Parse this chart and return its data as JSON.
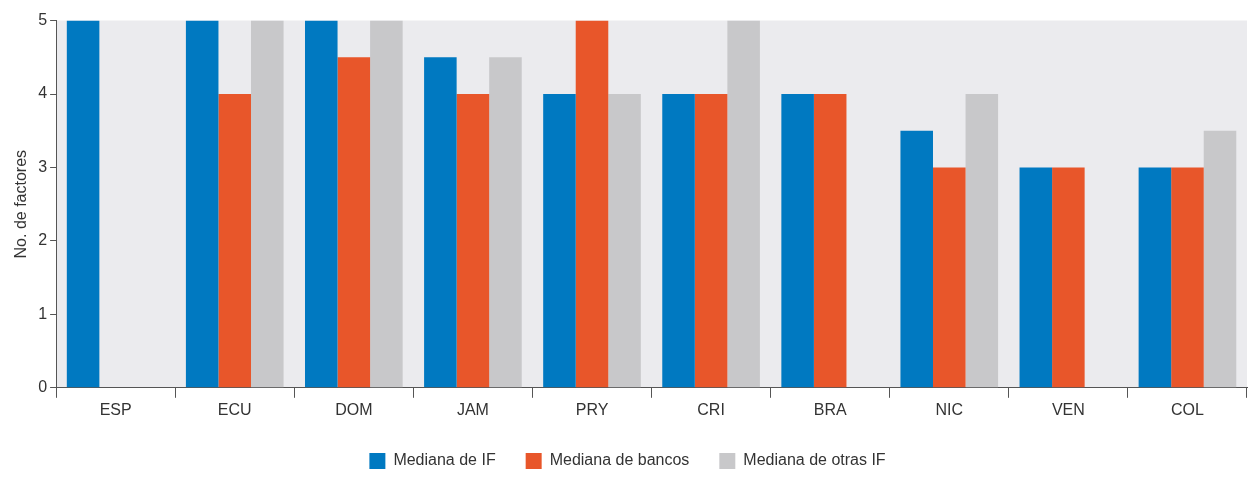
{
  "chart_data": {
    "type": "bar",
    "ylabel": "No. de factores",
    "categories": [
      "ESP",
      "ECU",
      "DOM",
      "JAM",
      "PRY",
      "CRI",
      "BRA",
      "NIC",
      "VEN",
      "COL"
    ],
    "series": [
      {
        "name": "Mediana de IF",
        "color": "#0079c1",
        "values": [
          5,
          5,
          5,
          4.5,
          4,
          4,
          4,
          3.5,
          3,
          3
        ]
      },
      {
        "name": "Mediana de bancos",
        "color": "#e8562a",
        "values": [
          null,
          4,
          4.5,
          4,
          5,
          4,
          4,
          3,
          3,
          3
        ]
      },
      {
        "name": "Mediana de otras IF",
        "color": "#c8c8ca",
        "values": [
          null,
          5,
          5,
          4.5,
          4,
          5,
          null,
          4,
          null,
          3.5
        ]
      }
    ],
    "ylim": [
      0,
      5
    ],
    "yticks": [
      0,
      1,
      2,
      3,
      4,
      5
    ],
    "grid": false,
    "legend": "bottom"
  }
}
